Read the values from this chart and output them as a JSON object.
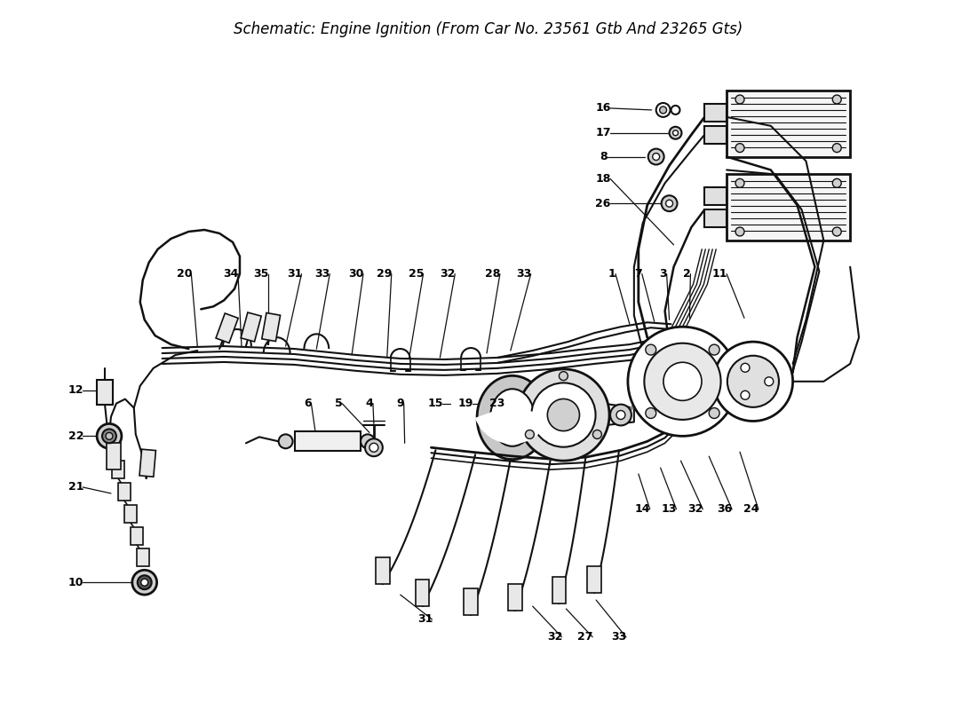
{
  "title": "Engine Ignition (From Car No. 23561 Gtb And 23265 Gts)",
  "title_prefix": "Schematic:",
  "bg": "#ffffff",
  "lc": "#111111",
  "fig_width": 11.0,
  "fig_height": 8.0,
  "dpi": 100,
  "img_xlim": [
    0,
    1100
  ],
  "img_ylim": [
    800,
    0
  ]
}
